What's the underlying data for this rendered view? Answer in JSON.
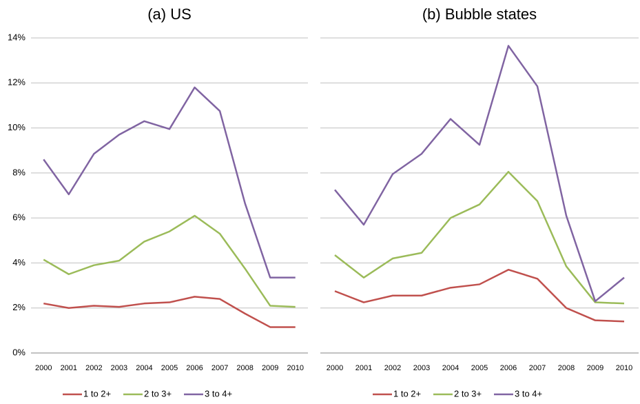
{
  "chart_data": [
    {
      "type": "line",
      "title": "(a) US",
      "categories": [
        "2000",
        "2001",
        "2002",
        "2003",
        "2004",
        "2005",
        "2006",
        "2007",
        "2008",
        "2009",
        "2010"
      ],
      "series": [
        {
          "name": "1 to 2+",
          "color": "#c0504d",
          "values": [
            2.2,
            2.0,
            2.1,
            2.05,
            2.2,
            2.25,
            2.5,
            2.4,
            1.75,
            1.15,
            1.15
          ]
        },
        {
          "name": "2 to 3+",
          "color": "#9bbb59",
          "values": [
            4.15,
            3.5,
            3.9,
            4.1,
            4.95,
            5.4,
            6.1,
            5.3,
            3.75,
            2.1,
            2.05
          ]
        },
        {
          "name": "3 to 4+",
          "color": "#8064a2",
          "values": [
            8.6,
            7.05,
            8.85,
            9.7,
            10.3,
            9.95,
            11.8,
            10.75,
            6.65,
            3.35,
            3.35
          ]
        }
      ],
      "ylim": [
        0,
        14
      ],
      "yticks": [
        {
          "value": 0,
          "label": "0%"
        },
        {
          "value": 2,
          "label": "2%"
        },
        {
          "value": 4,
          "label": "4%"
        },
        {
          "value": 6,
          "label": "6%"
        },
        {
          "value": 8,
          "label": "8%"
        },
        {
          "value": 10,
          "label": "10%"
        },
        {
          "value": 12,
          "label": "12%"
        },
        {
          "value": 14,
          "label": "14%"
        }
      ],
      "grid": true,
      "legend": "bottom"
    },
    {
      "type": "line",
      "title": "(b) Bubble states",
      "categories": [
        "2000",
        "2001",
        "2002",
        "2003",
        "2004",
        "2005",
        "2006",
        "2007",
        "2008",
        "2009",
        "2010"
      ],
      "series": [
        {
          "name": "1 to 2+",
          "color": "#c0504d",
          "values": [
            2.75,
            2.25,
            2.55,
            2.55,
            2.9,
            3.05,
            3.7,
            3.3,
            2.0,
            1.45,
            1.4
          ]
        },
        {
          "name": "2 to 3+",
          "color": "#9bbb59",
          "values": [
            4.35,
            3.35,
            4.2,
            4.45,
            6.0,
            6.6,
            8.05,
            6.75,
            3.85,
            2.25,
            2.2
          ]
        },
        {
          "name": "3 to 4+",
          "color": "#8064a2",
          "values": [
            7.25,
            5.7,
            7.95,
            8.85,
            10.4,
            9.25,
            13.65,
            11.85,
            6.1,
            2.3,
            3.35
          ]
        }
      ],
      "ylim": [
        0,
        14
      ],
      "yticks": [
        0,
        2,
        4,
        6,
        8,
        10,
        12,
        14
      ],
      "grid": true,
      "legend": "bottom"
    }
  ]
}
